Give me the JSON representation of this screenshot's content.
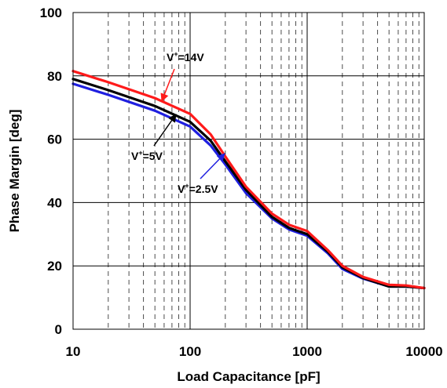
{
  "chart_data": {
    "type": "line",
    "xlabel": "Load Capacitance [pF]",
    "ylabel": "Phase Margin [deg]",
    "x_scale": "log",
    "xlim": [
      10,
      10000
    ],
    "ylim": [
      0,
      100
    ],
    "x_ticks": [
      10,
      100,
      1000,
      10000
    ],
    "x_tick_labels": [
      "10",
      "100",
      "1000",
      "10000"
    ],
    "y_ticks": [
      0,
      20,
      40,
      60,
      80,
      100
    ],
    "y_tick_labels": [
      "0",
      "20",
      "40",
      "60",
      "80",
      "100"
    ],
    "grid": true,
    "series": [
      {
        "name": "V+=2.5V",
        "color": "#1f1fe0",
        "x": [
          10,
          20,
          50,
          100,
          150,
          200,
          300,
          500,
          700,
          1000,
          1500,
          2000,
          3000,
          5000,
          7000,
          10000
        ],
        "y": [
          77.5,
          74,
          69,
          64,
          58,
          52,
          43,
          35,
          31.5,
          29.5,
          24,
          19,
          16,
          13.5,
          13.5,
          13
        ]
      },
      {
        "name": "V+=5V",
        "color": "#000000",
        "x": [
          10,
          20,
          50,
          100,
          150,
          200,
          300,
          500,
          700,
          1000,
          1500,
          2000,
          3000,
          5000,
          7000,
          10000
        ],
        "y": [
          79,
          75.5,
          70.5,
          65.5,
          59.5,
          53,
          44,
          35.5,
          32,
          30,
          24.5,
          19.5,
          16.2,
          13.5,
          13.5,
          13
        ]
      },
      {
        "name": "V+=14V",
        "color": "#ff1a1a",
        "x": [
          10,
          20,
          50,
          100,
          150,
          200,
          300,
          500,
          700,
          1000,
          1500,
          2000,
          3000,
          5000,
          7000,
          10000
        ],
        "y": [
          81.5,
          78,
          73,
          68,
          61.5,
          54.5,
          45,
          36.5,
          33,
          31,
          25,
          20,
          16.5,
          14,
          13.8,
          13
        ]
      }
    ],
    "annotations": [
      {
        "text_main": "V",
        "text_sup": "+",
        "text_rest": "=14V",
        "color": "#ff1a1a"
      },
      {
        "text_main": "V",
        "text_sup": "+",
        "text_rest": "=5V",
        "color": "#000000"
      },
      {
        "text_main": "V",
        "text_sup": "+",
        "text_rest": "=2.5V",
        "color": "#1f1fe0"
      }
    ]
  }
}
